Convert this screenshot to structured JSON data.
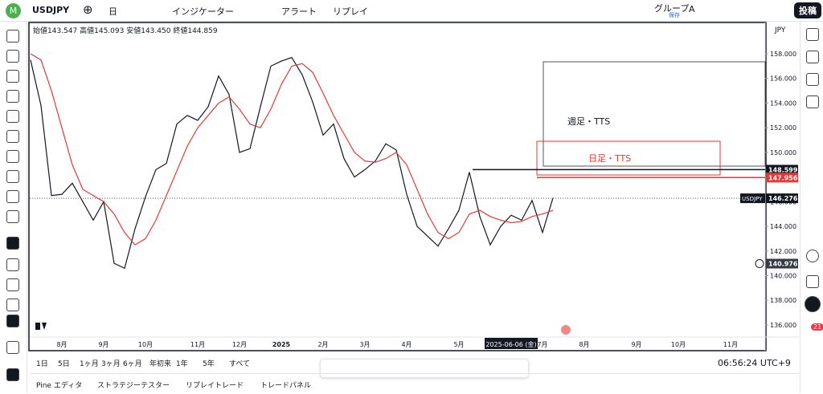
{
  "header": {
    "avatar": "M",
    "symbol": "USDJPY",
    "interval": "日",
    "indicators": "インジケーター",
    "alert": "アラート",
    "replay": "リプレイ",
    "group": "グループ",
    "group_mark": "A",
    "save": "保存",
    "publish": "投稿"
  },
  "ohlc": {
    "open_label": "始値",
    "open": "143.547",
    "high_label": "高値",
    "high": "145.093",
    "low_label": "安値",
    "low": "143.450",
    "close_label": "終値",
    "close": "144.859"
  },
  "currency": "JPY",
  "chart_data": {
    "type": "line",
    "categories": [
      null,
      null,
      null,
      "8月",
      null,
      null,
      null,
      "9月",
      null,
      null,
      null,
      "10月",
      null,
      null,
      null,
      null,
      "11月",
      null,
      null,
      null,
      "12月",
      null,
      null,
      null,
      "2025",
      null,
      null,
      null,
      "2月",
      null,
      null,
      null,
      "3月",
      null,
      null,
      null,
      "4月",
      null,
      null,
      null,
      null,
      "5月",
      null,
      null,
      null,
      null,
      "2025-06-06 (金)",
      null,
      null,
      "7月",
      null,
      null,
      null,
      "8月",
      null,
      null,
      null,
      null,
      "9月",
      null,
      null,
      null,
      "10月",
      null,
      null,
      null,
      null,
      "11月",
      null,
      null
    ],
    "series": [
      {
        "color": "#131722",
        "values": [
          157.5,
          153.8,
          146.5,
          146.6,
          147.5,
          146,
          144.5,
          146,
          141,
          140.6,
          143.8,
          146.4,
          148.6,
          149.1,
          152.3,
          153,
          152.6,
          153.7,
          156.2,
          154.7,
          150,
          150.3,
          153.7,
          157,
          157.4,
          157.7,
          156.3,
          154.1,
          151.4,
          152.3,
          149.5,
          148,
          148.6,
          149.3,
          150.7,
          150.2,
          146.6,
          144,
          143.2,
          142.4,
          143.8,
          145.3,
          148.4,
          144.8,
          142.5,
          144,
          144.9,
          144.5,
          146.1,
          143.5,
          146.3,
          null,
          null,
          null,
          null,
          null,
          null,
          null,
          null,
          null,
          null,
          null,
          null,
          null,
          null,
          null,
          null,
          null,
          null,
          null
        ]
      },
      {
        "color": "#e53935",
        "values": [
          158,
          157.5,
          155,
          152,
          149,
          147,
          146.5,
          146,
          145,
          143.5,
          142.5,
          143,
          144.5,
          146.5,
          148.5,
          150.5,
          152,
          153,
          154,
          154.5,
          153.5,
          152.3,
          152,
          153.5,
          155.5,
          157,
          157.2,
          156.5,
          154.8,
          153,
          151.5,
          150,
          149.3,
          149.2,
          149.5,
          150,
          149,
          147,
          145,
          143.5,
          143,
          143.5,
          145,
          145.3,
          144.8,
          144.5,
          144.3,
          144.4,
          144.8,
          145,
          145.3,
          null,
          null,
          null,
          null,
          null,
          null,
          null,
          null,
          null,
          null,
          null,
          null,
          null,
          null,
          null,
          null,
          null,
          null,
          null
        ]
      }
    ],
    "ylim": [
      135.02,
      160.54
    ],
    "yticks": [
      {
        "value": 136,
        "label": "136.000"
      },
      {
        "value": 138,
        "label": "138.000"
      },
      {
        "value": 140,
        "label": "140.000"
      },
      {
        "value": 142,
        "label": "142.000"
      },
      {
        "value": 144,
        "label": "144.000"
      },
      {
        "value": 146,
        "label": "146.000"
      },
      {
        "value": 148,
        "label": "148.000"
      },
      {
        "value": 150,
        "label": "150.000"
      },
      {
        "value": 152,
        "label": "152.000"
      },
      {
        "value": 154,
        "label": "154.000"
      },
      {
        "value": 156,
        "label": "156.000"
      },
      {
        "value": 158,
        "label": "158.000"
      }
    ],
    "price_labels": [
      {
        "value": 148.599,
        "color": "#131722"
      },
      {
        "value": 147.956,
        "color": "#e53935"
      },
      {
        "name": "USDJPY",
        "value": 146.276,
        "color": "#131722"
      },
      {
        "value": 140.976,
        "color": "#363a45"
      }
    ],
    "annotations": [
      "週足・TTS",
      "日足・TTS"
    ]
  },
  "timeframes": [
    "1日",
    "5日",
    "1ヶ月",
    "3ヶ月",
    "6ヶ月",
    "年初来",
    "1年",
    "5年",
    "すべて"
  ],
  "clock": "06:56:24 UTC+9",
  "panels": [
    "Pine エディタ",
    "ストラテジーテスター",
    "リプレイトレード",
    "トレードパネル"
  ],
  "notifications": "21"
}
